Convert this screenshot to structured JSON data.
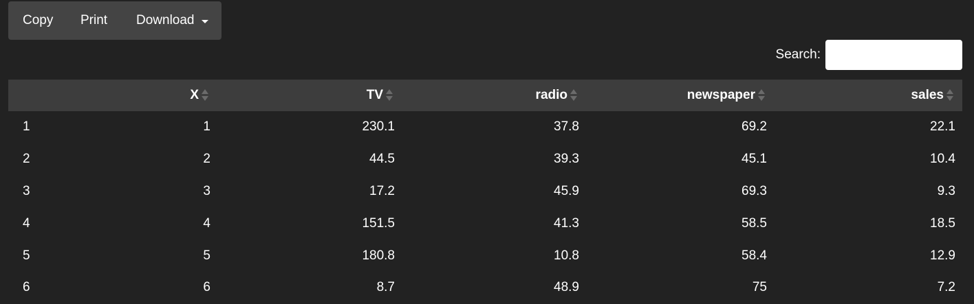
{
  "toolbar": {
    "copy_label": "Copy",
    "print_label": "Print",
    "download_label": "Download"
  },
  "search": {
    "label": "Search:",
    "value": ""
  },
  "table": {
    "columns": [
      "",
      "X",
      "TV",
      "radio",
      "newspaper",
      "sales"
    ],
    "rows": [
      [
        "1",
        "1",
        "230.1",
        "37.8",
        "69.2",
        "22.1"
      ],
      [
        "2",
        "2",
        "44.5",
        "39.3",
        "45.1",
        "10.4"
      ],
      [
        "3",
        "3",
        "17.2",
        "45.9",
        "69.3",
        "9.3"
      ],
      [
        "4",
        "4",
        "151.5",
        "41.3",
        "58.5",
        "18.5"
      ],
      [
        "5",
        "5",
        "180.8",
        "10.8",
        "58.4",
        "12.9"
      ],
      [
        "6",
        "6",
        "8.7",
        "48.9",
        "75",
        "7.2"
      ]
    ]
  },
  "colors": {
    "background": "#222222",
    "button_group": "#444444",
    "header_row": "#3d3d3d",
    "text": "#ffffff"
  }
}
